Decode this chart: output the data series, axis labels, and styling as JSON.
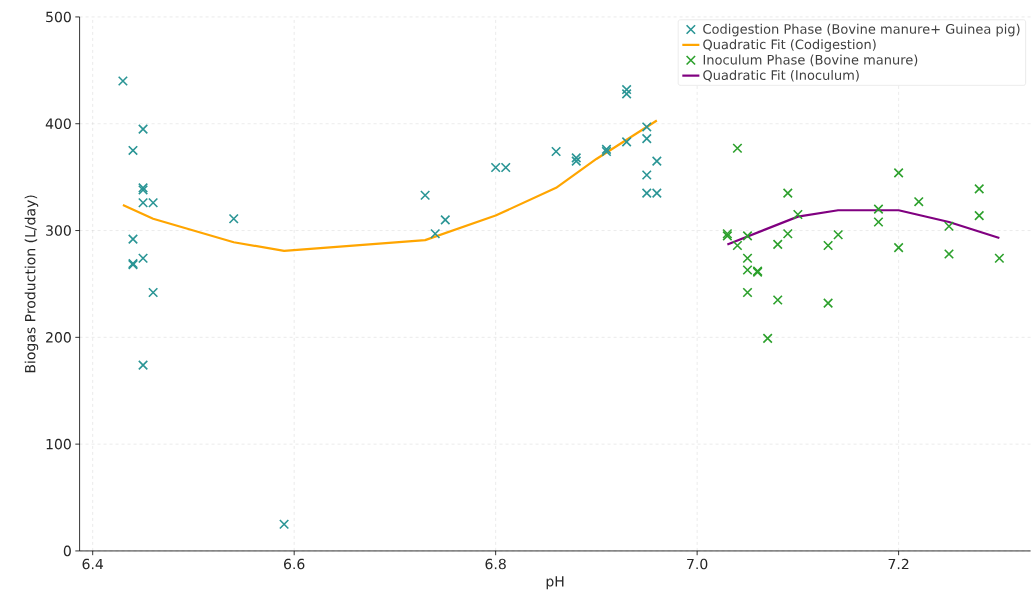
{
  "chart_data": {
    "type": "scatter",
    "xlabel": "pH",
    "ylabel": "Biogas Production (L/day)",
    "xlim": [
      6.387,
      7.331
    ],
    "ylim": [
      0,
      500
    ],
    "xticks": [
      6.4,
      6.6,
      6.8,
      {
        "value": 7.0,
        "label": "7.0"
      },
      7.2
    ],
    "yticks": [
      0,
      100,
      200,
      300,
      400,
      500
    ],
    "grid": true,
    "legend": "top right",
    "series": [
      {
        "name": "Codigestion Phase (Bovine manure+ Guinea pig)",
        "marker": "cross",
        "color": "#2a9595",
        "x": [
          6.43,
          6.45,
          6.44,
          6.45,
          6.45,
          6.45,
          6.46,
          6.44,
          6.45,
          6.44,
          6.44,
          6.46,
          6.45,
          6.54,
          6.59,
          6.73,
          6.74,
          6.75,
          6.8,
          6.81,
          6.86,
          6.88,
          6.88,
          6.91,
          6.91,
          6.93,
          6.93,
          6.93,
          6.95,
          6.95,
          6.96,
          6.95,
          6.95,
          6.96
        ],
        "values": [
          440,
          395,
          375,
          340,
          338,
          326,
          326,
          292,
          274,
          269,
          268,
          242,
          174,
          311,
          25,
          333,
          297,
          310,
          359,
          359,
          374,
          368,
          365,
          376,
          374,
          432,
          428,
          383,
          397,
          386,
          365,
          352,
          335,
          335
        ]
      },
      {
        "name": "Quadratic Fit (Codigestion)",
        "type": "line",
        "line_style": "solid",
        "color": "#ffa500",
        "x": [
          6.43,
          6.46,
          6.54,
          6.59,
          6.73,
          6.8,
          6.86,
          6.9,
          6.96
        ],
        "values": [
          324,
          311,
          289,
          281,
          291,
          314,
          340,
          367,
          403
        ]
      },
      {
        "name": "Inoculum Phase (Bovine manure)",
        "marker": "cross",
        "color": "#2ca02c",
        "x": [
          7.04,
          7.2,
          7.09,
          7.28,
          7.22,
          7.1,
          7.28,
          7.18,
          7.18,
          7.25,
          7.03,
          7.03,
          7.05,
          7.09,
          7.14,
          7.04,
          7.08,
          7.13,
          7.2,
          7.25,
          7.3,
          7.05,
          7.05,
          7.06,
          7.06,
          7.05,
          7.08,
          7.13,
          7.07
        ],
        "values": [
          377,
          354,
          335,
          339,
          327,
          315,
          314,
          320,
          308,
          304,
          297,
          295,
          295,
          297,
          296,
          286,
          287,
          286,
          284,
          278,
          274,
          274,
          263,
          262,
          261,
          242,
          235,
          232,
          199
        ]
      },
      {
        "name": "Quadratic Fit (Inoculum)",
        "type": "line",
        "line_style": "solid",
        "color": "#800080",
        "x": [
          7.03,
          7.1,
          7.14,
          7.2,
          7.25,
          7.3
        ],
        "values": [
          287,
          313,
          319,
          319,
          308,
          293
        ]
      }
    ]
  }
}
